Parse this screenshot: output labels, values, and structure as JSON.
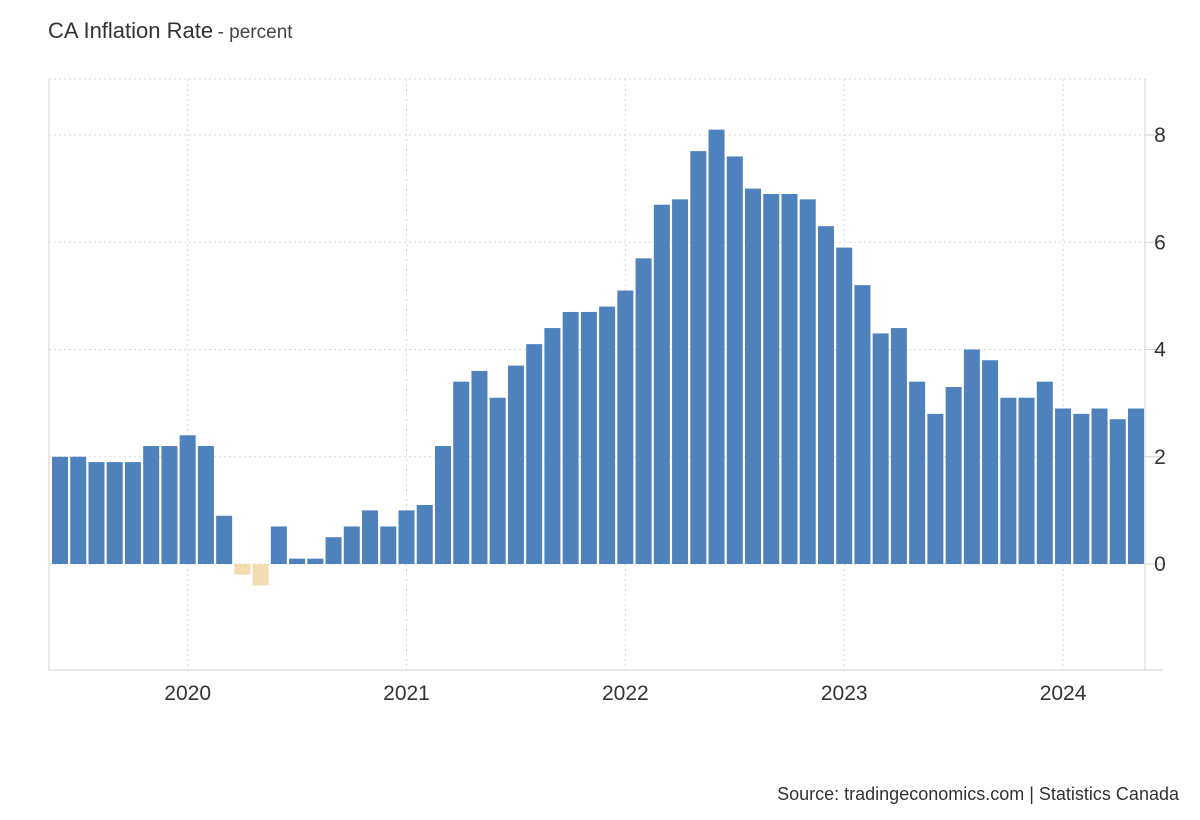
{
  "header": {
    "title": "CA Inflation Rate",
    "subtitle": "- percent"
  },
  "footer": {
    "source": "Source: tradingeconomics.com | Statistics Canada"
  },
  "colors": {
    "positive_bar": "#4f81bd",
    "negative_bar": "#f2dcb0",
    "grid": "#d9d9d9",
    "axis_text": "#333333"
  },
  "chart_data": {
    "type": "bar",
    "title": "CA Inflation Rate",
    "ylabel": "percent",
    "ylim": [
      -2,
      9
    ],
    "yticks": [
      0,
      2,
      4,
      6,
      8
    ],
    "xticks": [
      "2020",
      "2021",
      "2022",
      "2023",
      "2024"
    ],
    "grid": true,
    "categories": [
      "2019-06",
      "2019-07",
      "2019-08",
      "2019-09",
      "2019-10",
      "2019-11",
      "2019-12",
      "2020-01",
      "2020-02",
      "2020-03",
      "2020-04",
      "2020-05",
      "2020-06",
      "2020-07",
      "2020-08",
      "2020-09",
      "2020-10",
      "2020-11",
      "2020-12",
      "2021-01",
      "2021-02",
      "2021-03",
      "2021-04",
      "2021-05",
      "2021-06",
      "2021-07",
      "2021-08",
      "2021-09",
      "2021-10",
      "2021-11",
      "2021-12",
      "2022-01",
      "2022-02",
      "2022-03",
      "2022-04",
      "2022-05",
      "2022-06",
      "2022-07",
      "2022-08",
      "2022-09",
      "2022-10",
      "2022-11",
      "2022-12",
      "2023-01",
      "2023-02",
      "2023-03",
      "2023-04",
      "2023-05",
      "2023-06",
      "2023-07",
      "2023-08",
      "2023-09",
      "2023-10",
      "2023-11",
      "2023-12",
      "2024-01",
      "2024-02",
      "2024-03",
      "2024-04",
      "2024-05"
    ],
    "values": [
      2.0,
      2.0,
      1.9,
      1.9,
      1.9,
      2.2,
      2.2,
      2.4,
      2.2,
      0.9,
      -0.2,
      -0.4,
      0.7,
      0.1,
      0.1,
      0.5,
      0.7,
      1.0,
      0.7,
      1.0,
      1.1,
      2.2,
      3.4,
      3.6,
      3.1,
      3.7,
      4.1,
      4.4,
      4.7,
      4.7,
      4.8,
      5.1,
      5.7,
      6.7,
      6.8,
      7.7,
      8.1,
      7.6,
      7.0,
      6.9,
      6.9,
      6.8,
      6.3,
      5.9,
      5.2,
      4.3,
      4.4,
      3.4,
      2.8,
      3.3,
      4.0,
      3.8,
      3.1,
      3.1,
      3.4,
      2.9,
      2.8,
      2.9,
      2.7,
      2.9
    ]
  }
}
